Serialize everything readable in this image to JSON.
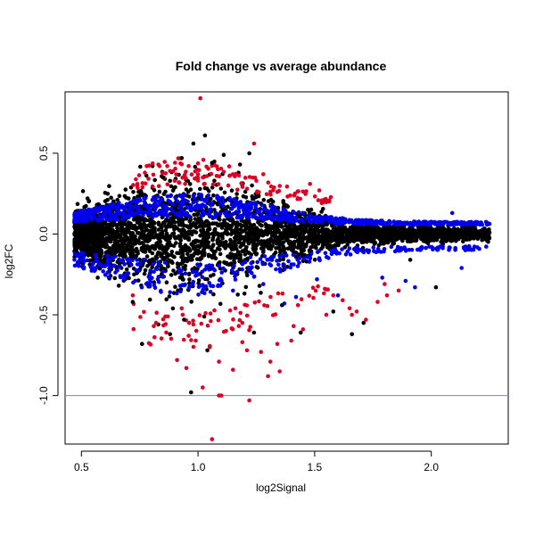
{
  "chart_data": {
    "type": "scatter",
    "title": "Fold change vs average abundance",
    "xlabel": "log2Signal",
    "ylabel": "log2FC",
    "xlim": [
      0.43,
      2.33
    ],
    "ylim": [
      -1.3,
      0.88
    ],
    "x_ticks": [
      {
        "value": 0.5,
        "label": "0.5"
      },
      {
        "value": 1.0,
        "label": "1.0"
      },
      {
        "value": 1.5,
        "label": "1.5"
      },
      {
        "value": 2.0,
        "label": "2.0"
      }
    ],
    "y_ticks": [
      {
        "value": -1.0,
        "label": "-1.0"
      },
      {
        "value": -0.5,
        "label": "-0.5"
      },
      {
        "value": 0.0,
        "label": "0.0"
      },
      {
        "value": 0.5,
        "label": "0.5"
      }
    ],
    "reference_line": {
      "y": -1.0,
      "color": "#7777ff"
    },
    "grid": false,
    "legend": "none",
    "colors": {
      "black": "#000000",
      "blue": "#0000ee",
      "red": "#dd0022"
    },
    "cloud": {
      "x_range": [
        0.47,
        2.25
      ],
      "black_count": 3600,
      "blue_count": 1100,
      "red_count": 180,
      "seed": 20240601
    },
    "series": [
      {
        "color": "black",
        "values": [
          [
            1.03,
            0.61
          ],
          [
            0.98,
            0.56
          ],
          [
            1.11,
            0.49
          ],
          [
            0.93,
            0.47
          ],
          [
            1.18,
            0.43
          ],
          [
            1.06,
            0.44
          ],
          [
            0.97,
            -0.98
          ],
          [
            0.88,
            -0.62
          ],
          [
            0.76,
            -0.68
          ],
          [
            0.83,
            -0.56
          ],
          [
            1.24,
            -0.61
          ],
          [
            1.44,
            -0.61
          ],
          [
            2.02,
            -0.33
          ],
          [
            1.91,
            -0.16
          ],
          [
            1.22,
            0.5
          ],
          [
            0.85,
            0.35
          ],
          [
            0.72,
            -0.42
          ],
          [
            0.66,
            -0.32
          ],
          [
            0.94,
            -0.53
          ],
          [
            1.58,
            -0.48
          ],
          [
            1.71,
            -0.55
          ],
          [
            1.66,
            -0.62
          ],
          [
            0.57,
            -0.27
          ],
          [
            1.04,
            -0.72
          ],
          [
            1.36,
            -0.44
          ]
        ]
      },
      {
        "color": "blue",
        "values": [
          [
            2.13,
            -0.21
          ],
          [
            1.89,
            -0.29
          ],
          [
            1.93,
            -0.33
          ],
          [
            1.42,
            -0.39
          ],
          [
            1.37,
            -0.43
          ],
          [
            1.28,
            -0.31
          ],
          [
            0.59,
            -0.2
          ],
          [
            2.09,
            0.13
          ],
          [
            1.79,
            -0.27
          ],
          [
            1.6,
            -0.38
          ],
          [
            0.62,
            0.09
          ],
          [
            1.15,
            -0.35
          ],
          [
            0.88,
            -0.36
          ],
          [
            1.51,
            -0.28
          ]
        ]
      },
      {
        "color": "red",
        "values": [
          [
            1.01,
            0.84
          ],
          [
            1.24,
            0.56
          ],
          [
            1.06,
            -1.27
          ],
          [
            1.09,
            -1.0
          ],
          [
            1.1,
            -1.0
          ],
          [
            1.22,
            -1.03
          ],
          [
            1.02,
            -0.95
          ],
          [
            0.91,
            -0.78
          ],
          [
            0.95,
            -0.83
          ],
          [
            1.15,
            -0.84
          ],
          [
            1.3,
            -0.88
          ],
          [
            1.35,
            -0.85
          ],
          [
            1.05,
            -0.7
          ],
          [
            0.99,
            -0.66
          ],
          [
            1.21,
            -0.72
          ],
          [
            1.09,
            -0.79
          ],
          [
            1.31,
            -0.79
          ],
          [
            1.45,
            -0.59
          ],
          [
            1.41,
            -0.57
          ],
          [
            1.58,
            -0.38
          ],
          [
            1.62,
            -0.41
          ],
          [
            1.66,
            -0.5
          ],
          [
            1.65,
            -0.46
          ],
          [
            1.8,
            -0.31
          ],
          [
            1.86,
            -0.35
          ],
          [
            1.81,
            -0.38
          ],
          [
            1.77,
            -0.42
          ],
          [
            1.72,
            -0.53
          ],
          [
            1.68,
            -0.48
          ],
          [
            1.55,
            -0.5
          ],
          [
            1.4,
            -0.66
          ],
          [
            1.34,
            -0.68
          ],
          [
            1.27,
            -0.73
          ],
          [
            1.19,
            -0.67
          ],
          [
            1.12,
            -0.6
          ],
          [
            0.86,
            -0.51
          ],
          [
            0.82,
            -0.55
          ],
          [
            0.93,
            -0.46
          ],
          [
            0.98,
            -0.56
          ],
          [
            1.16,
            -0.46
          ],
          [
            0.78,
            0.42
          ],
          [
            0.83,
            0.43
          ],
          [
            0.96,
            0.42
          ],
          [
            1.0,
            0.37
          ],
          [
            0.9,
            0.33
          ],
          [
            1.25,
            0.33
          ],
          [
            1.28,
            0.37
          ],
          [
            1.48,
            0.31
          ],
          [
            1.13,
            0.3
          ],
          [
            0.74,
            0.31
          ],
          [
            0.88,
            0.39
          ],
          [
            1.08,
            0.36
          ],
          [
            1.21,
            0.28
          ],
          [
            1.34,
            0.26
          ],
          [
            1.52,
            0.27
          ],
          [
            0.72,
            -0.38
          ],
          [
            1.19,
            -0.55
          ],
          [
            0.96,
            -0.63
          ]
        ]
      }
    ]
  }
}
